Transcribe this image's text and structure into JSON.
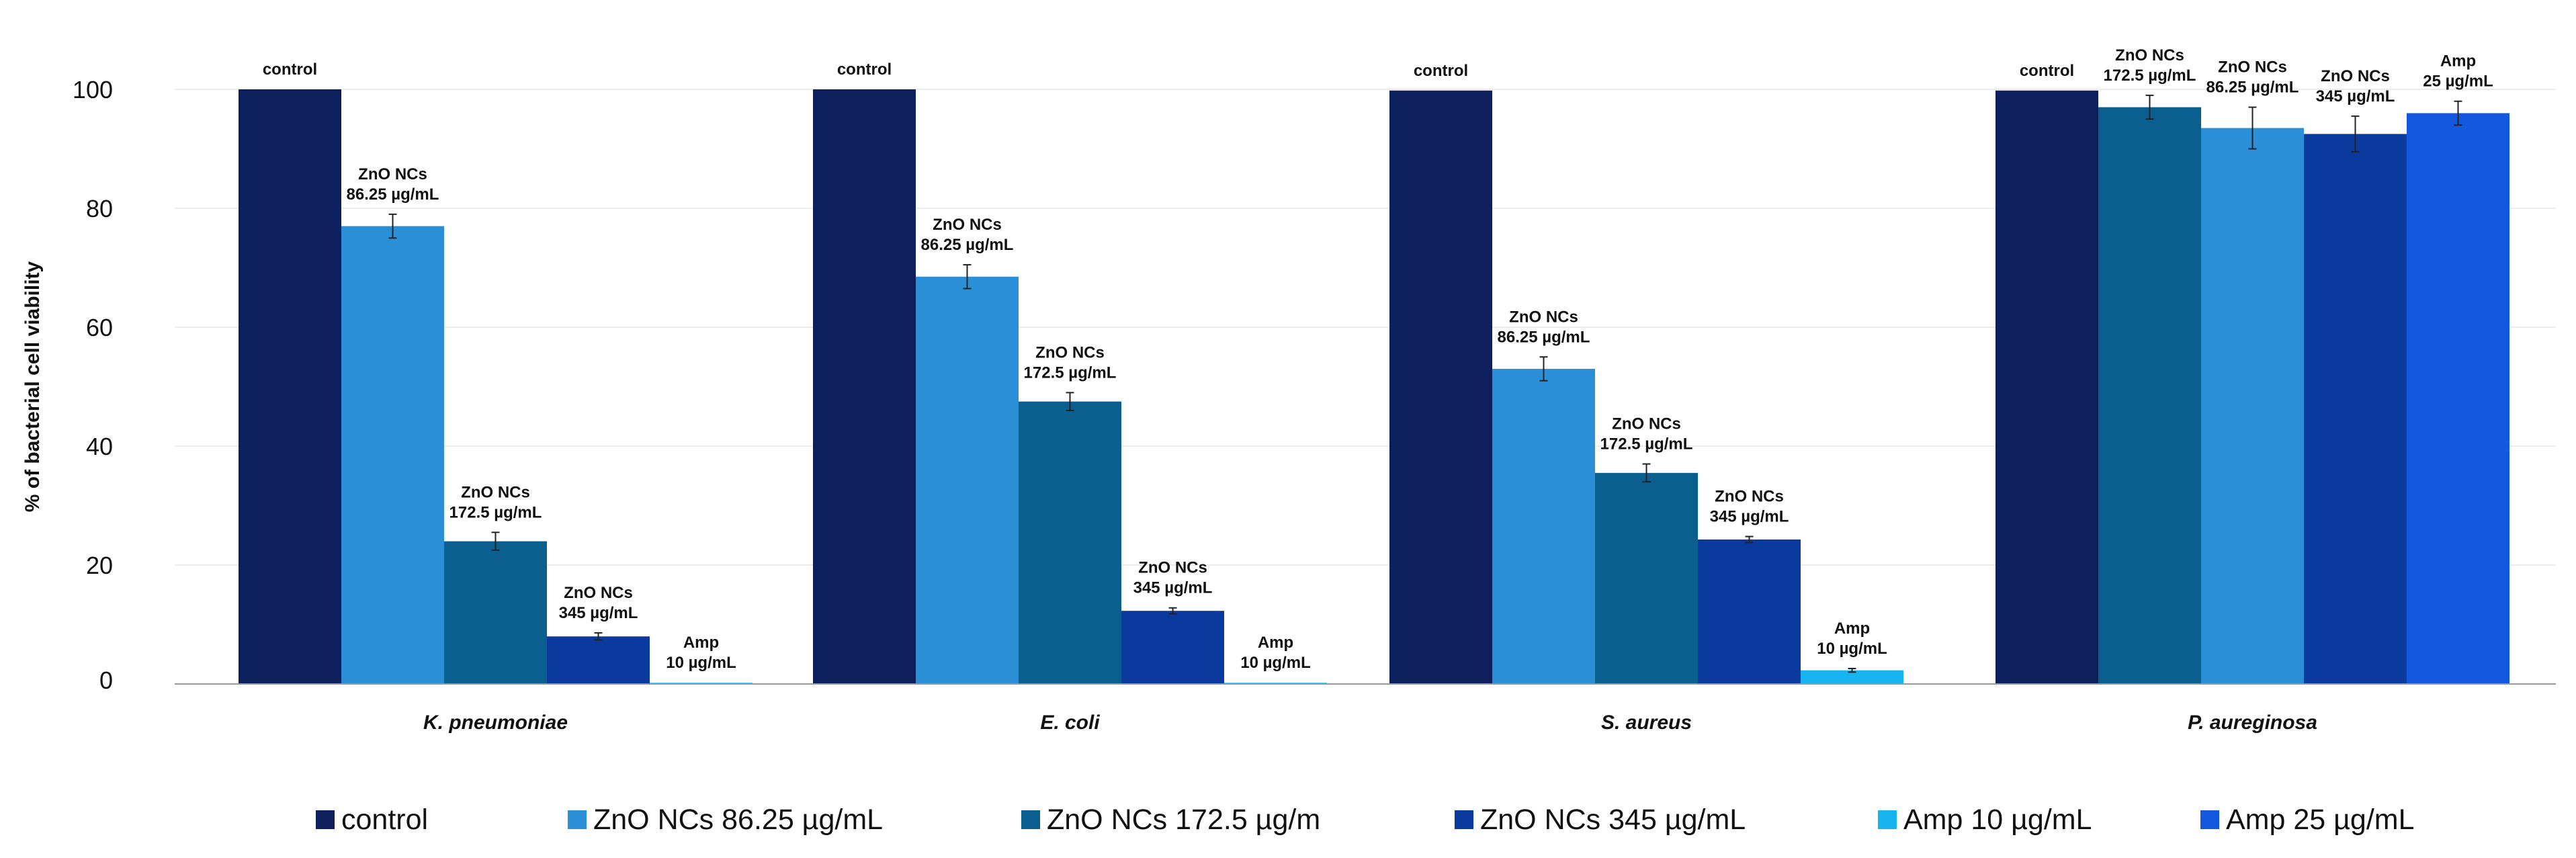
{
  "chart_data": {
    "type": "bar",
    "ylabel": "% of bacterial cell viability",
    "xlabel": "",
    "ylim": [
      0,
      105
    ],
    "yticks": [
      0,
      20,
      40,
      60,
      80,
      100
    ],
    "grid": true,
    "legend_position": "bottom",
    "legend": [
      {
        "key": "control",
        "label": "control"
      },
      {
        "key": "zno86",
        "label": "ZnO NCs 86.25 µg/mL"
      },
      {
        "key": "zno172",
        "label": "ZnO NCs 172.5 µg/m"
      },
      {
        "key": "zno345",
        "label": "ZnO NCs 345 µg/mL"
      },
      {
        "key": "amp10",
        "label": "Amp 10 µg/mL"
      },
      {
        "key": "amp25",
        "label": "Amp 25 µg/mL"
      }
    ],
    "colors": {
      "control": "#0d1f5c",
      "zno86": "#2a8fd6",
      "zno172": "#0a5f8f",
      "zno345": "#0b3a9e",
      "amp10": "#18b4ef",
      "amp25": "#1458e0"
    },
    "groups": [
      {
        "label": "K. pneumoniae",
        "bars": [
          {
            "series": "control",
            "value": 100,
            "error": 0,
            "label": [
              "control"
            ]
          },
          {
            "series": "zno86",
            "value": 77,
            "error": 2,
            "label": [
              "ZnO NCs",
              "86.25 µg/mL"
            ]
          },
          {
            "series": "zno172",
            "value": 24,
            "error": 1.5,
            "label": [
              "ZnO NCs",
              "172.5 µg/mL"
            ]
          },
          {
            "series": "zno345",
            "value": 8,
            "error": 0.6,
            "label": [
              "ZnO NCs",
              "345 µg/mL"
            ]
          },
          {
            "series": "amp10",
            "value": 0.2,
            "error": 0,
            "label": [
              "Amp",
              "10 µg/mL"
            ]
          }
        ]
      },
      {
        "label": "E. coli",
        "bars": [
          {
            "series": "control",
            "value": 100,
            "error": 0,
            "label": [
              "control"
            ]
          },
          {
            "series": "zno86",
            "value": 68.5,
            "error": 2,
            "label": [
              "ZnO NCs",
              "86.25 µg/mL"
            ]
          },
          {
            "series": "zno172",
            "value": 47.5,
            "error": 1.5,
            "label": [
              "ZnO NCs",
              "172.5 µg/mL"
            ]
          },
          {
            "series": "zno345",
            "value": 12.3,
            "error": 0.5,
            "label": [
              "ZnO NCs",
              "345 µg/mL"
            ]
          },
          {
            "series": "amp10",
            "value": 0.2,
            "error": 0,
            "label": [
              "Amp",
              "10 µg/mL"
            ]
          }
        ]
      },
      {
        "label": "S. aureus",
        "bars": [
          {
            "series": "control",
            "value": 99.8,
            "error": 0,
            "label": [
              "control"
            ]
          },
          {
            "series": "zno86",
            "value": 53,
            "error": 2,
            "label": [
              "ZnO NCs",
              "86.25 µg/mL"
            ]
          },
          {
            "series": "zno172",
            "value": 35.5,
            "error": 1.5,
            "label": [
              "ZnO NCs",
              "172.5 µg/mL"
            ]
          },
          {
            "series": "zno345",
            "value": 24.3,
            "error": 0.5,
            "label": [
              "ZnO NCs",
              "345 µg/mL"
            ]
          },
          {
            "series": "amp10",
            "value": 2.3,
            "error": 0.3,
            "label": [
              "Amp",
              "10 µg/mL"
            ]
          }
        ]
      },
      {
        "label": "P. aureginosa",
        "bars": [
          {
            "series": "control",
            "value": 99.8,
            "error": 0,
            "label": [
              "control"
            ]
          },
          {
            "series": "zno172",
            "value": 97,
            "error": 2,
            "label": [
              "ZnO NCs",
              "172.5 µg/mL"
            ]
          },
          {
            "series": "zno86",
            "value": 93.5,
            "error": 3.5,
            "label": [
              "ZnO NCs",
              "86.25 µg/mL"
            ]
          },
          {
            "series": "zno345",
            "value": 92.5,
            "error": 3,
            "label": [
              "ZnO NCs",
              "345 µg/mL"
            ]
          },
          {
            "series": "amp25",
            "value": 96,
            "error": 2,
            "label": [
              "Amp",
              "25 µg/mL"
            ]
          }
        ]
      }
    ]
  }
}
